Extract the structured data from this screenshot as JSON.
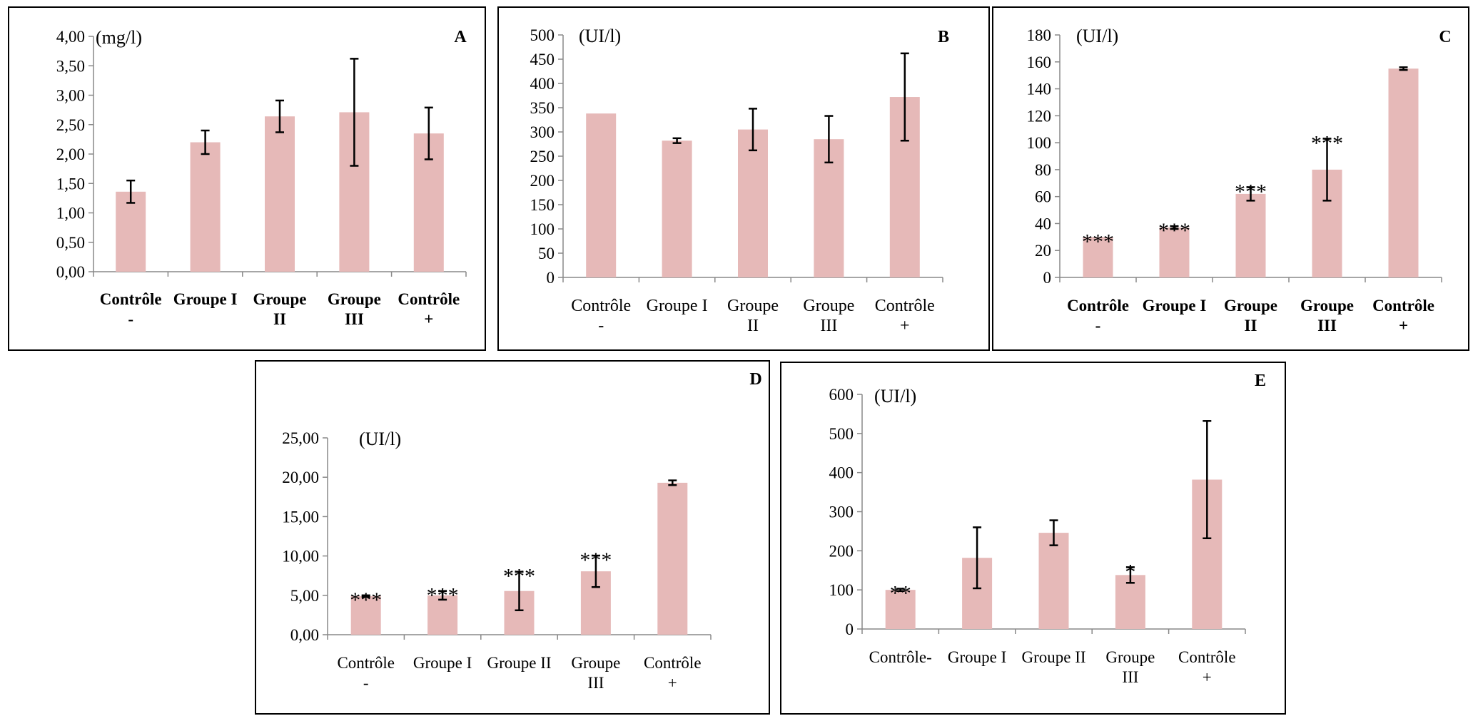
{
  "chart_data": [
    {
      "type": "bar",
      "panel_letter": "A",
      "ylabel": "(mg/l)",
      "categories": [
        [
          "Contrôle",
          "-"
        ],
        [
          "Groupe I"
        ],
        [
          "Groupe",
          "II"
        ],
        [
          "Groupe",
          "III"
        ],
        [
          "Contrôle",
          "+"
        ]
      ],
      "values": [
        1.36,
        2.2,
        2.64,
        2.71,
        2.35
      ],
      "errors": [
        0.19,
        0.2,
        0.27,
        0.91,
        0.44
      ],
      "significance": [
        "",
        "",
        "",
        "",
        ""
      ],
      "ylim": [
        0,
        4
      ],
      "yticks": [
        "0,00",
        "0,50",
        "1,00",
        "1,50",
        "2,00",
        "2,50",
        "3,00",
        "3,50",
        "4,00"
      ],
      "grid": false,
      "bar_color": "#e6b9b8",
      "category_bold": true
    },
    {
      "type": "bar",
      "panel_letter": "B",
      "ylabel": "(UI/l)",
      "categories": [
        [
          "Contrôle",
          "-"
        ],
        [
          "Groupe I"
        ],
        [
          "Groupe",
          "II"
        ],
        [
          "Groupe",
          "III"
        ],
        [
          "Contrôle",
          "+"
        ]
      ],
      "values": [
        338,
        282,
        305,
        285,
        372
      ],
      "errors": [
        0,
        5,
        43,
        48,
        90
      ],
      "significance": [
        "",
        "",
        "",
        "",
        ""
      ],
      "ylim": [
        0,
        500
      ],
      "yticks": [
        "0",
        "50",
        "100",
        "150",
        "200",
        "250",
        "300",
        "350",
        "400",
        "450",
        "500"
      ],
      "grid": false,
      "bar_color": "#e6b9b8",
      "category_bold": false
    },
    {
      "type": "bar",
      "panel_letter": "C",
      "ylabel": "(UI/l)",
      "categories": [
        [
          "Contrôle",
          "-"
        ],
        [
          "Groupe I"
        ],
        [
          "Groupe",
          "II"
        ],
        [
          "Groupe",
          "III"
        ],
        [
          "Contrôle",
          "+"
        ]
      ],
      "values": [
        30,
        37,
        62,
        80,
        155
      ],
      "errors": [
        0,
        1,
        5,
        23,
        1
      ],
      "significance": [
        "***",
        "***",
        "***",
        "***",
        ""
      ],
      "ylim": [
        0,
        180
      ],
      "yticks": [
        "0",
        "20",
        "40",
        "60",
        "80",
        "100",
        "120",
        "140",
        "160",
        "180"
      ],
      "grid": false,
      "bar_color": "#e6b9b8",
      "category_bold": true
    },
    {
      "type": "bar",
      "panel_letter": "D",
      "ylabel": "(UI/l)",
      "categories": [
        [
          "Contrôle",
          "-"
        ],
        [
          "Groupe I"
        ],
        [
          "Groupe II"
        ],
        [
          "Groupe",
          "III"
        ],
        [
          "Contrôle",
          "+"
        ]
      ],
      "values": [
        4.9,
        5.0,
        5.55,
        8.05,
        19.3
      ],
      "errors": [
        0.1,
        0.55,
        2.45,
        2.0,
        0.3
      ],
      "significance": [
        "***",
        "***",
        "***",
        "***",
        ""
      ],
      "ylim": [
        0,
        25
      ],
      "yticks": [
        "0,00",
        "5,00",
        "10,00",
        "15,00",
        "20,00",
        "25,00"
      ],
      "grid": false,
      "bar_color": "#e6b9b8",
      "category_bold": false
    },
    {
      "type": "bar",
      "panel_letter": "E",
      "ylabel": "(UI/l)",
      "categories": [
        [
          "Contrôle-"
        ],
        [
          "Groupe I"
        ],
        [
          "Groupe II"
        ],
        [
          "Groupe",
          "III"
        ],
        [
          "Contrôle",
          "+"
        ]
      ],
      "values": [
        100,
        182,
        246,
        138,
        382
      ],
      "errors": [
        3,
        78,
        32,
        20,
        150
      ],
      "significance": [
        "**",
        "",
        "",
        "*",
        ""
      ],
      "ylim": [
        0,
        600
      ],
      "yticks": [
        "0",
        "100",
        "200",
        "300",
        "400",
        "500",
        "600"
      ],
      "grid": false,
      "bar_color": "#e6b9b8",
      "category_bold": false
    }
  ]
}
